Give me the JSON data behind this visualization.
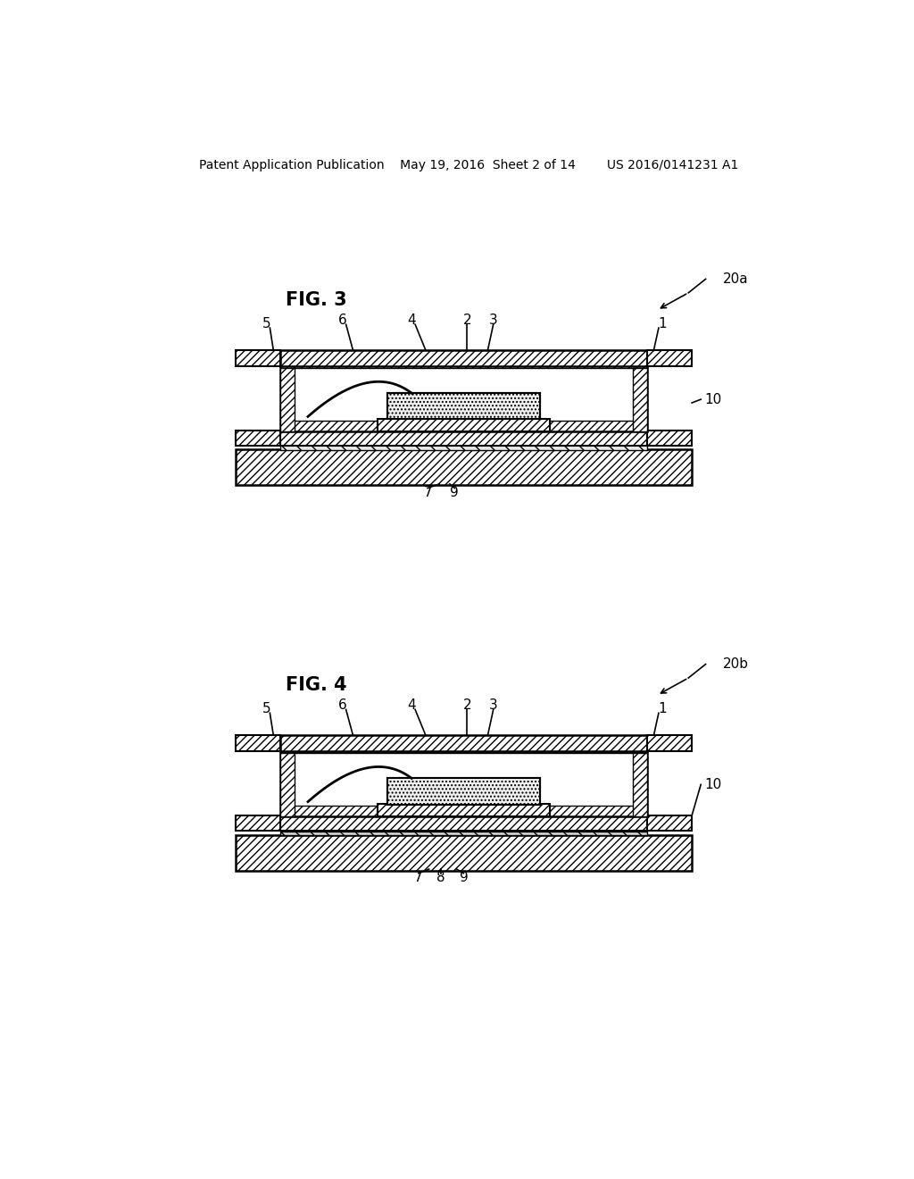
{
  "bg_color": "#ffffff",
  "header_text": "Patent Application Publication    May 19, 2016  Sheet 2 of 14        US 2016/0141231 A1",
  "fig3_label": "FIG. 3",
  "fig4_label": "FIG. 4",
  "ref_20a": "20a",
  "ref_20b": "20b"
}
